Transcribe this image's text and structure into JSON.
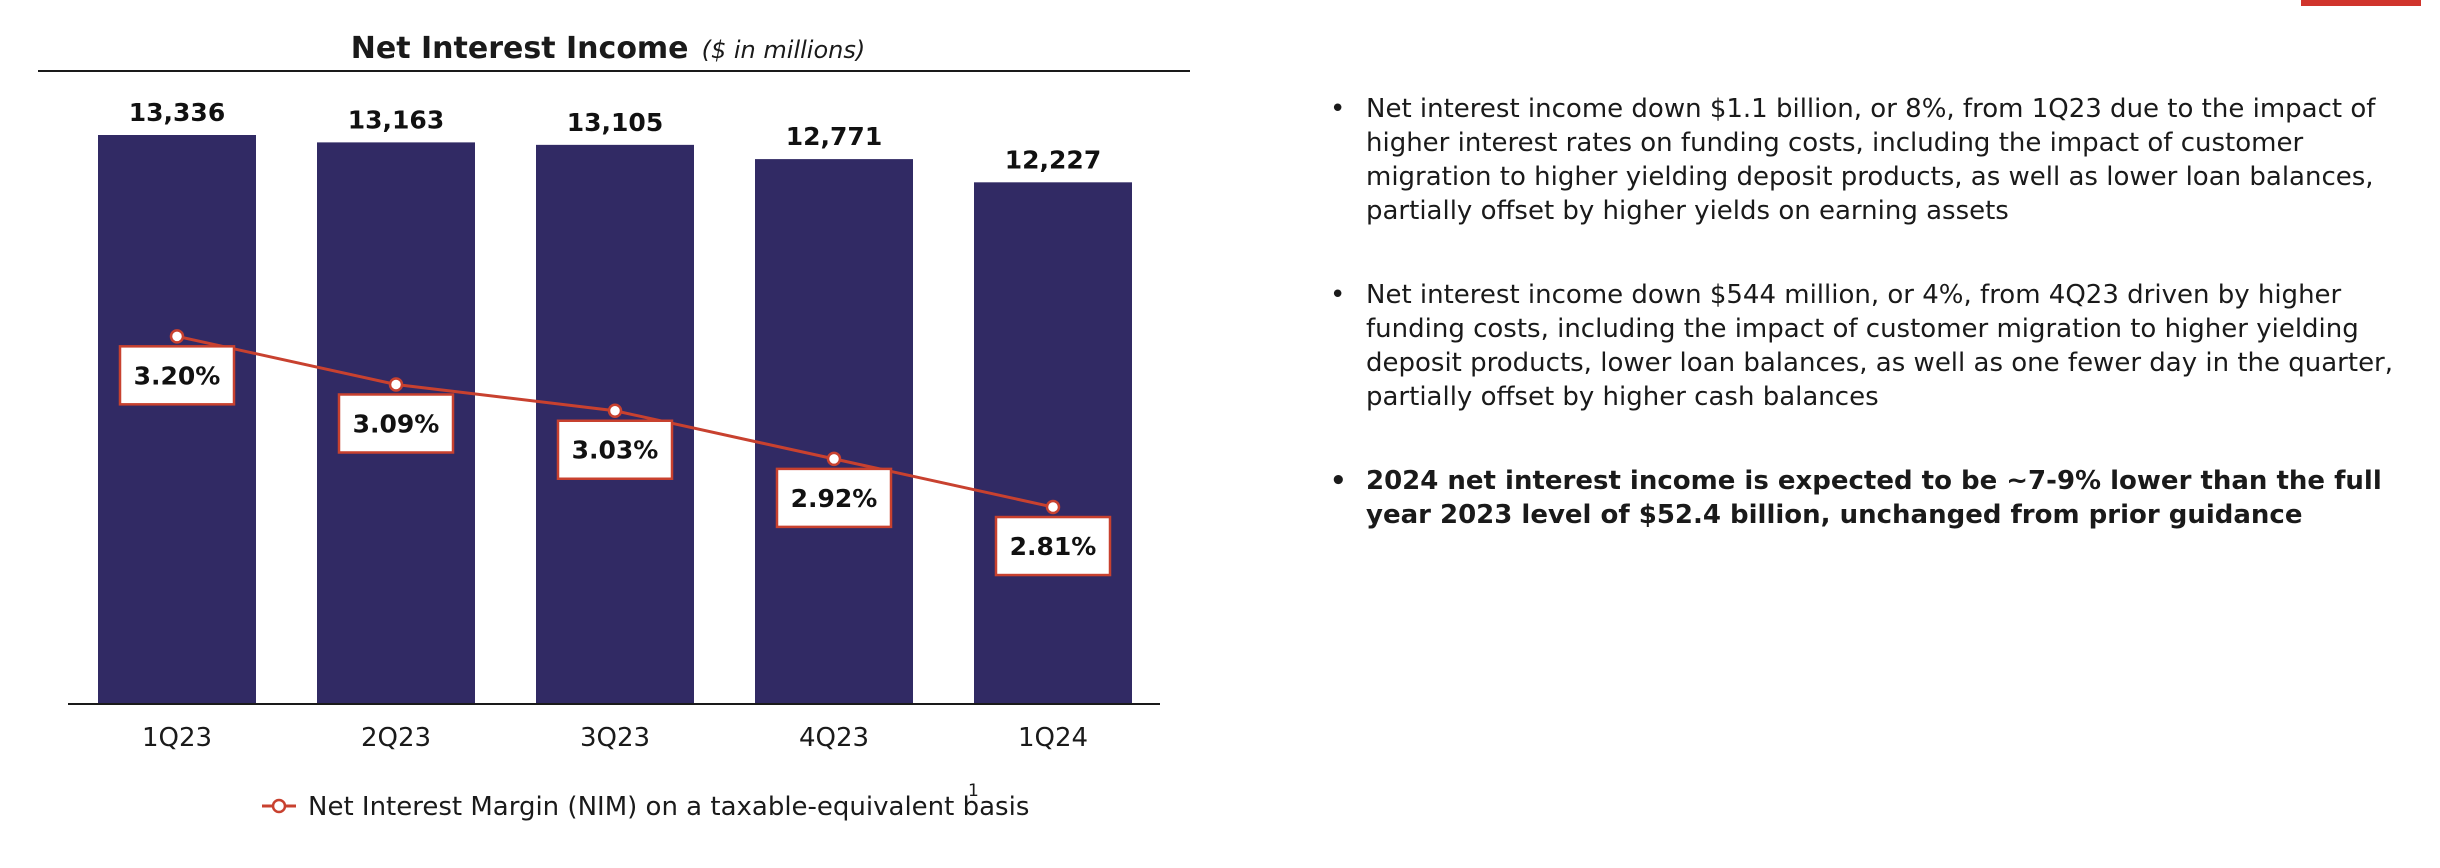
{
  "chart_data": {
    "type": "bar",
    "title": "Net Interest Income",
    "subtitle": "($ in millions)",
    "categories": [
      "1Q23",
      "2Q23",
      "3Q23",
      "4Q23",
      "1Q24"
    ],
    "series": [
      {
        "name": "Net Interest Income",
        "values": [
          13336,
          13163,
          13105,
          12771,
          12227
        ],
        "labels": [
          "13,336",
          "13,163",
          "13,105",
          "12,771",
          "12,227"
        ],
        "color": "#312a64"
      },
      {
        "name": "Net Interest Margin (NIM) on a taxable-equivalent basis",
        "values": [
          3.2,
          3.09,
          3.03,
          2.92,
          2.81
        ],
        "labels": [
          "3.20%",
          "3.09%",
          "3.03%",
          "2.92%",
          "2.81%"
        ],
        "color": "#c8412f",
        "type": "line"
      }
    ],
    "ylim": [
      0,
      13336
    ],
    "nim_ylim": [
      2.36,
      3.66
    ],
    "xlabel": "",
    "ylabel": "",
    "grid": false,
    "legend": {
      "position": "bottom",
      "label": "Net Interest Margin (NIM) on a taxable-equivalent basis",
      "footnote": "1"
    }
  },
  "commentary": {
    "bullets": [
      {
        "text": "Net interest income down $1.1 billion, or 8%, from 1Q23 due to the impact of higher interest rates on funding costs, including the impact of customer migration to higher yielding deposit products, as well as lower loan balances, partially offset by higher yields on earning assets",
        "bold": false
      },
      {
        "text": "Net interest income down $544 million, or 4%, from 4Q23 driven by higher funding costs, including the impact of customer migration to higher yielding deposit products, lower loan balances, as well as one fewer day in the quarter, partially offset by higher cash balances",
        "bold": false
      },
      {
        "text": "2024 net interest income is expected to be ~7-9% lower than the full year 2023 level of $52.4 billion, unchanged from prior guidance",
        "bold": true
      }
    ]
  },
  "theme": {
    "accent": "#d0342c",
    "bar_color": "#312a64",
    "line_color": "#c8412f"
  }
}
